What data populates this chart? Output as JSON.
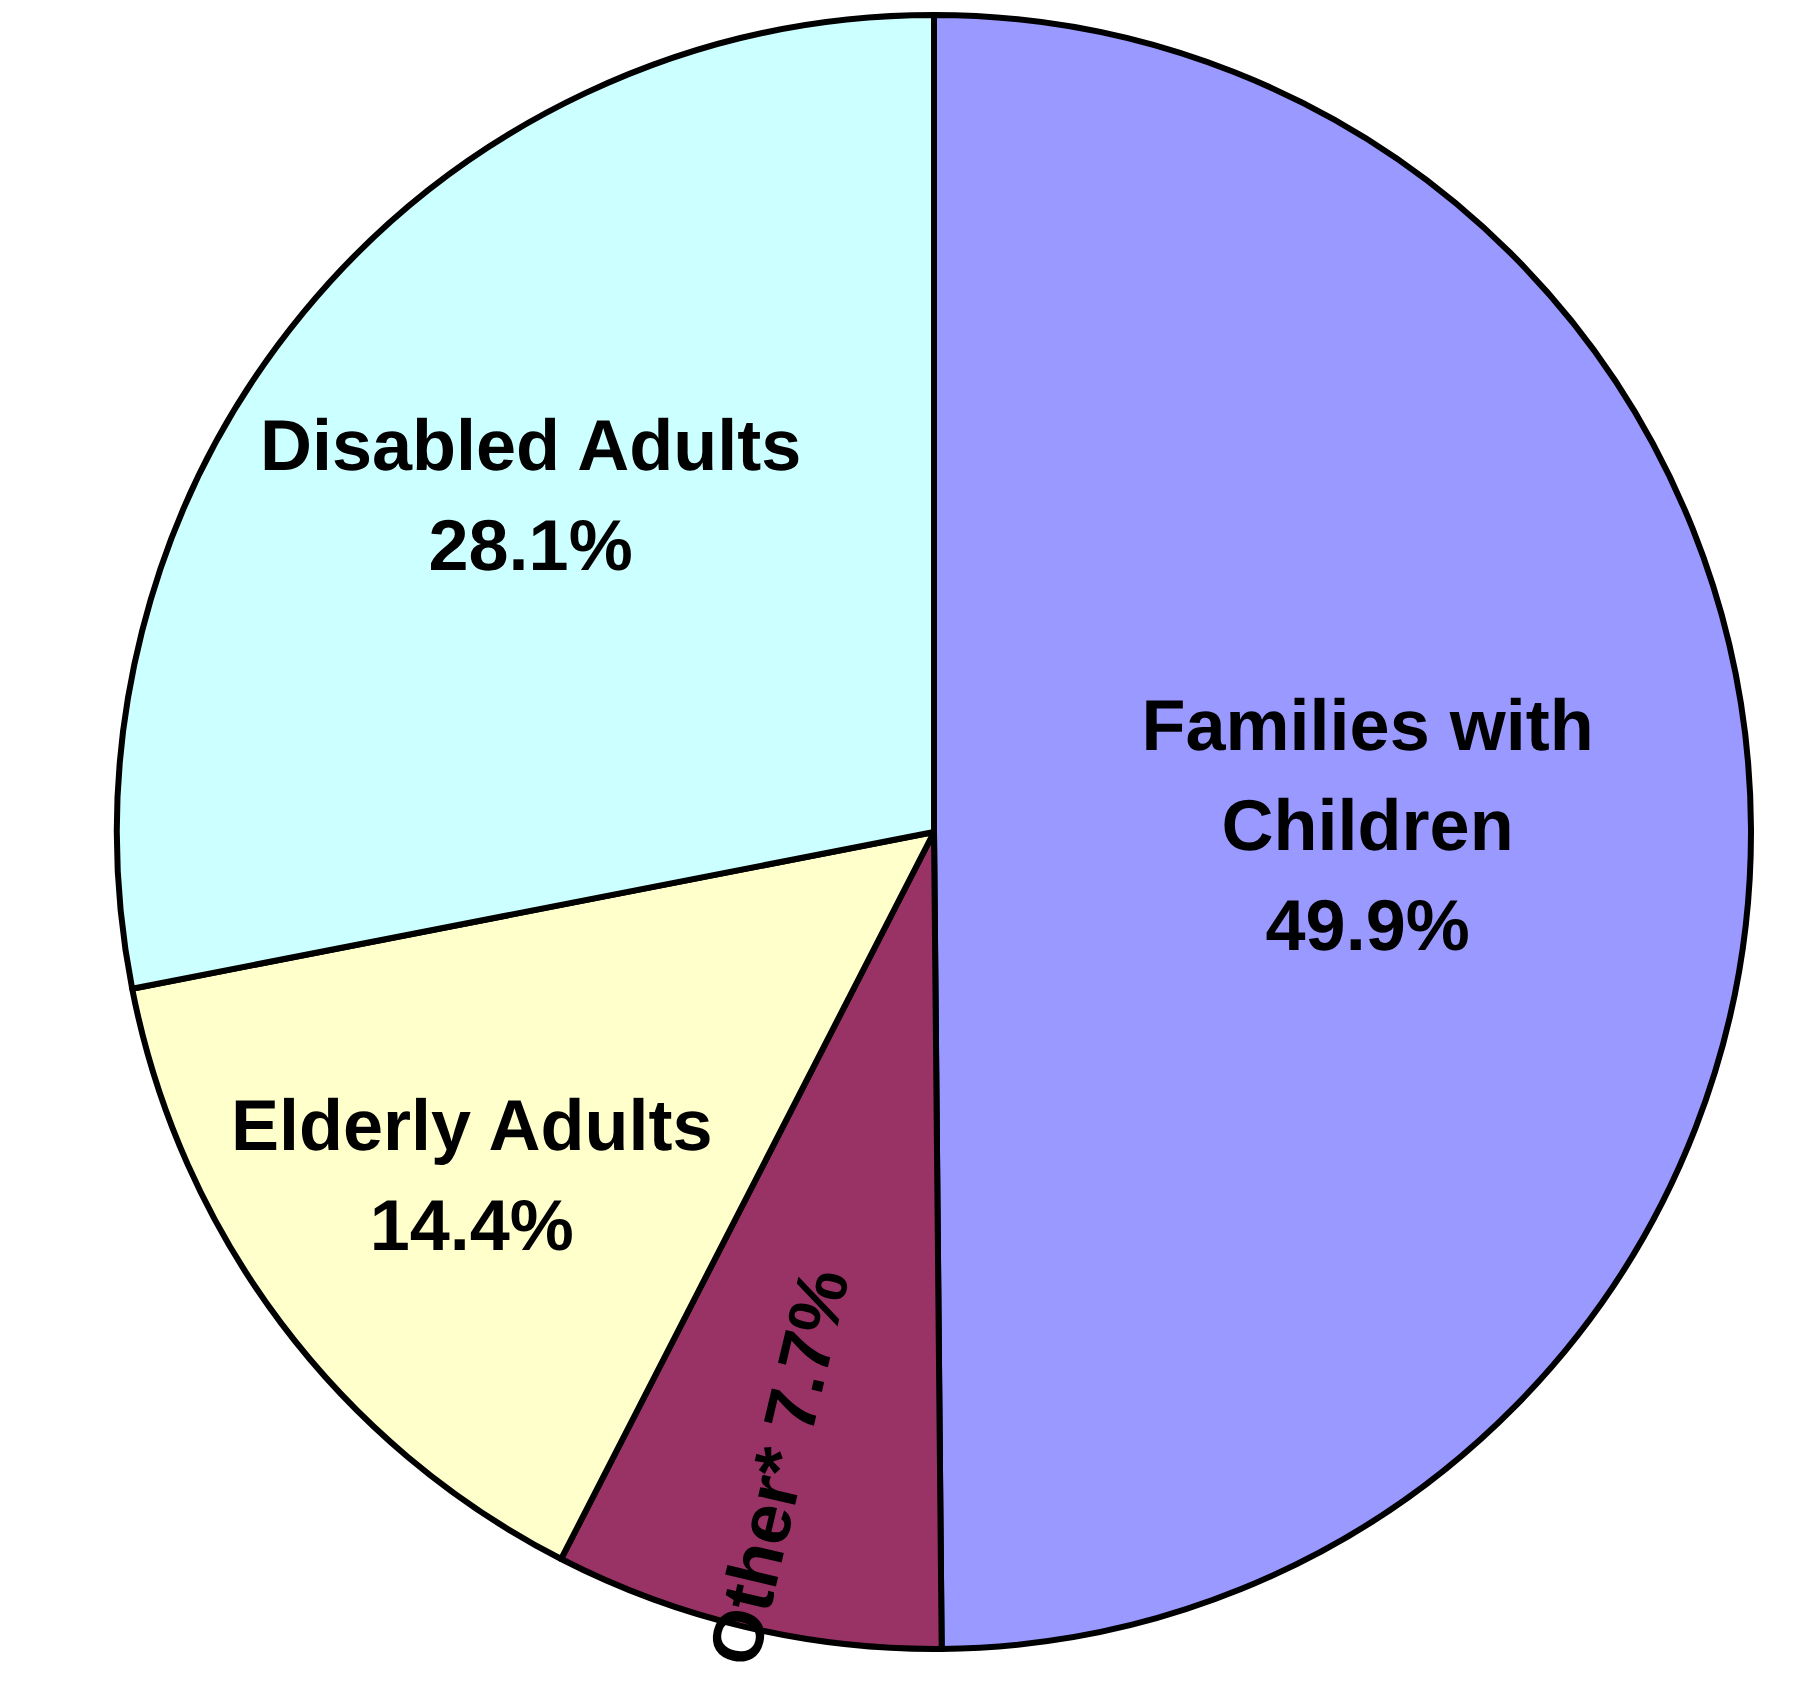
{
  "chart_data": {
    "type": "pie",
    "categories": [
      "Families with Children",
      "Other*",
      "Elderly Adults",
      "Disabled Adults"
    ],
    "values": [
      49.9,
      7.7,
      14.4,
      28.1
    ],
    "colors": [
      "#9999ff",
      "#993366",
      "#ffffcc",
      "#ccffff"
    ],
    "value_labels": [
      "49.9%",
      "7.7%",
      "14.4%",
      "28.1%"
    ]
  }
}
